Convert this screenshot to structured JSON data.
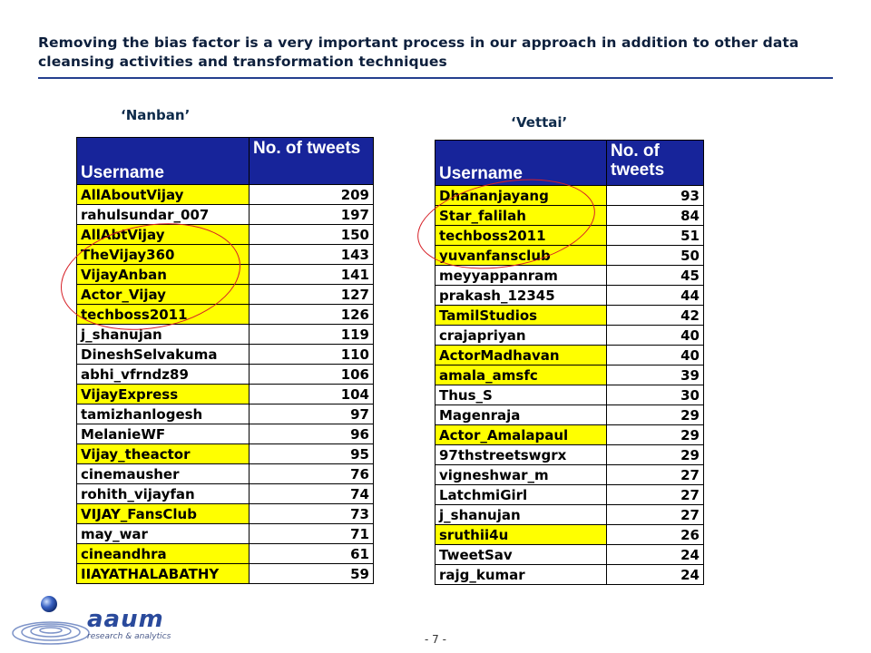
{
  "slide": {
    "title": "Removing the bias factor is a very important process in our approach in addition to other data cleansing activities and transformation techniques",
    "page_number": "- 7 -"
  },
  "logo": {
    "name": "aaum",
    "tagline": "research & analytics"
  },
  "colors": {
    "header_bg": "#17249a",
    "highlight": "#ffff00",
    "circle": "#d61f26",
    "title_rule": "#243f8f"
  },
  "nanban": {
    "caption": "‘Nanban’",
    "headers": {
      "username": "Username",
      "tweets": "No. of tweets"
    },
    "rows": [
      {
        "username": "AllAboutVijay",
        "tweets": "209",
        "highlighted": true
      },
      {
        "username": "rahulsundar_007",
        "tweets": "197",
        "highlighted": false
      },
      {
        "username": "AllAbtVijay",
        "tweets": "150",
        "highlighted": true
      },
      {
        "username": "TheVijay360",
        "tweets": "143",
        "highlighted": true
      },
      {
        "username": "VijayAnban",
        "tweets": "141",
        "highlighted": true
      },
      {
        "username": "Actor_Vijay",
        "tweets": "127",
        "highlighted": true
      },
      {
        "username": "techboss2011",
        "tweets": "126",
        "highlighted": true
      },
      {
        "username": "j_shanujan",
        "tweets": "119",
        "highlighted": false
      },
      {
        "username": "DineshSelvakuma",
        "tweets": "110",
        "highlighted": false
      },
      {
        "username": "abhi_vfrndz89",
        "tweets": "106",
        "highlighted": false
      },
      {
        "username": "VijayExpress",
        "tweets": "104",
        "highlighted": true
      },
      {
        "username": "tamizhanlogesh",
        "tweets": "97",
        "highlighted": false
      },
      {
        "username": "MelanieWF",
        "tweets": "96",
        "highlighted": false
      },
      {
        "username": "Vijay_theactor",
        "tweets": "95",
        "highlighted": true
      },
      {
        "username": "cinemausher",
        "tweets": "76",
        "highlighted": false
      },
      {
        "username": "rohith_vijayfan",
        "tweets": "74",
        "highlighted": false
      },
      {
        "username": "VIJAY_FansClub",
        "tweets": "73",
        "highlighted": true
      },
      {
        "username": "may_war",
        "tweets": "71",
        "highlighted": false
      },
      {
        "username": "cineandhra",
        "tweets": "61",
        "highlighted": true
      },
      {
        "username": "IIAYATHALABATHY",
        "tweets": "59",
        "highlighted": true
      }
    ]
  },
  "vettai": {
    "caption": "‘Vettai’",
    "headers": {
      "username": "Username",
      "tweets": "No. of tweets"
    },
    "rows": [
      {
        "username": "Dhananjayang",
        "tweets": "93",
        "highlighted": true
      },
      {
        "username": "Star_falilah",
        "tweets": "84",
        "highlighted": true
      },
      {
        "username": "techboss2011",
        "tweets": "51",
        "highlighted": true
      },
      {
        "username": "yuvanfansclub",
        "tweets": "50",
        "highlighted": true
      },
      {
        "username": "meyyappanram",
        "tweets": "45",
        "highlighted": false
      },
      {
        "username": "prakash_12345",
        "tweets": "44",
        "highlighted": false
      },
      {
        "username": "TamilStudios",
        "tweets": "42",
        "highlighted": true
      },
      {
        "username": "crajapriyan",
        "tweets": "40",
        "highlighted": false
      },
      {
        "username": "ActorMadhavan",
        "tweets": "40",
        "highlighted": true
      },
      {
        "username": "amala_amsfc",
        "tweets": "39",
        "highlighted": true
      },
      {
        "username": "Thus_S",
        "tweets": "30",
        "highlighted": false
      },
      {
        "username": "Magenraja",
        "tweets": "29",
        "highlighted": false
      },
      {
        "username": "Actor_Amalapaul",
        "tweets": "29",
        "highlighted": true
      },
      {
        "username": "97thstreetswgrx",
        "tweets": "29",
        "highlighted": false
      },
      {
        "username": "vigneshwar_m",
        "tweets": "27",
        "highlighted": false
      },
      {
        "username": "LatchmiGirl",
        "tweets": "27",
        "highlighted": false
      },
      {
        "username": "j_shanujan",
        "tweets": "27",
        "highlighted": false
      },
      {
        "username": "sruthii4u",
        "tweets": "26",
        "highlighted": true
      },
      {
        "username": "TweetSav",
        "tweets": "24",
        "highlighted": false
      },
      {
        "username": "rajg_kumar",
        "tweets": "24",
        "highlighted": false
      }
    ]
  }
}
